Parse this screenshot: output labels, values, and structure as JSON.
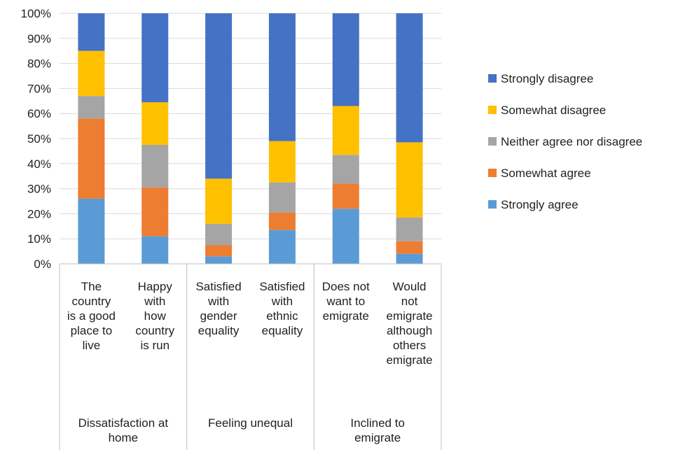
{
  "chart_data": {
    "type": "bar",
    "stacked": true,
    "percent": true,
    "categories": [
      [
        "The",
        "country",
        "is a good",
        "place to",
        "live"
      ],
      [
        "Happy",
        "with",
        "how",
        "country",
        "is run"
      ],
      [
        "Satisfied",
        "with",
        "gender",
        "equality"
      ],
      [
        "Satisfied",
        "with",
        "ethnic",
        "equality"
      ],
      [
        "Does not",
        "want to",
        "emigrate"
      ],
      [
        "Would",
        "not",
        "emigrate",
        "although",
        "others",
        "emigrate"
      ]
    ],
    "groups": [
      {
        "label": [
          "Dissatisfaction at",
          "home"
        ],
        "span": 2
      },
      {
        "label": [
          "Feeling unequal"
        ],
        "span": 2
      },
      {
        "label": [
          "Inclined to",
          "emigrate"
        ],
        "span": 2
      }
    ],
    "series": [
      {
        "name": "Strongly agree",
        "color": "#5B9BD5",
        "values": [
          26,
          11,
          3,
          13.5,
          22,
          4
        ]
      },
      {
        "name": "Somewhat agree",
        "color": "#ED7D31",
        "values": [
          32,
          19.5,
          4.5,
          7,
          10,
          5
        ]
      },
      {
        "name": "Neither agree nor disagree",
        "color": "#A5A5A5",
        "values": [
          9,
          17,
          8.5,
          12,
          11.5,
          9.5
        ]
      },
      {
        "name": "Somewhat disagree",
        "color": "#FFC000",
        "values": [
          18,
          17,
          18,
          16.5,
          19.5,
          30
        ]
      },
      {
        "name": "Strongly disagree",
        "color": "#4472C4",
        "values": [
          15,
          35.5,
          66,
          51,
          37,
          51.5
        ]
      }
    ],
    "ylim": [
      0,
      100
    ],
    "yticks": [
      "0%",
      "10%",
      "20%",
      "30%",
      "40%",
      "50%",
      "60%",
      "70%",
      "80%",
      "90%",
      "100%"
    ],
    "legend_position": "right",
    "grid": true
  }
}
